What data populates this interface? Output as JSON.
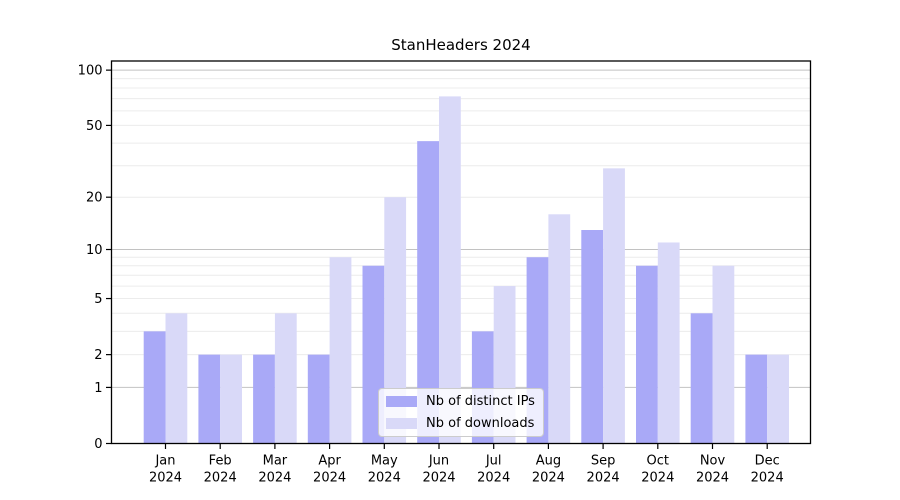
{
  "title": "StanHeaders 2024",
  "chart_data": {
    "type": "bar",
    "title": "StanHeaders 2024",
    "categories": [
      "Jan 2024",
      "Feb 2024",
      "Mar 2024",
      "Apr 2024",
      "May 2024",
      "Jun 2024",
      "Jul 2024",
      "Aug 2024",
      "Sep 2024",
      "Oct 2024",
      "Nov 2024",
      "Dec 2024"
    ],
    "series": [
      {
        "name": "Nb of distinct IPs",
        "color": "#a9a9f7",
        "values": [
          3,
          2,
          2,
          2,
          8,
          41,
          3,
          9,
          13,
          8,
          4,
          2
        ]
      },
      {
        "name": "Nb of downloads",
        "color": "#d9d9f8",
        "values": [
          4,
          2,
          4,
          9,
          20,
          72,
          6,
          16,
          29,
          11,
          8,
          2
        ]
      }
    ],
    "xlabel": "",
    "ylabel": "",
    "y_scale": "log1p",
    "ylim": [
      0,
      112
    ],
    "y_ticks": [
      0,
      1,
      2,
      5,
      10,
      20,
      50,
      100
    ],
    "minor_gridlines": [
      2,
      3,
      4,
      5,
      6,
      7,
      8,
      9,
      20,
      30,
      40,
      50,
      60,
      70,
      80,
      90
    ],
    "major_gridlines": [
      1,
      10,
      100
    ],
    "legend_position": "lower center inside",
    "grid": true
  },
  "colors": {
    "bar_dark": "#a9a9f7",
    "bar_light": "#d9d9f8",
    "minor_grid": "#ececec",
    "major_grid": "#c2c2c2",
    "spine": "#000000",
    "text": "#000000",
    "legend_border": "#cccccc"
  }
}
